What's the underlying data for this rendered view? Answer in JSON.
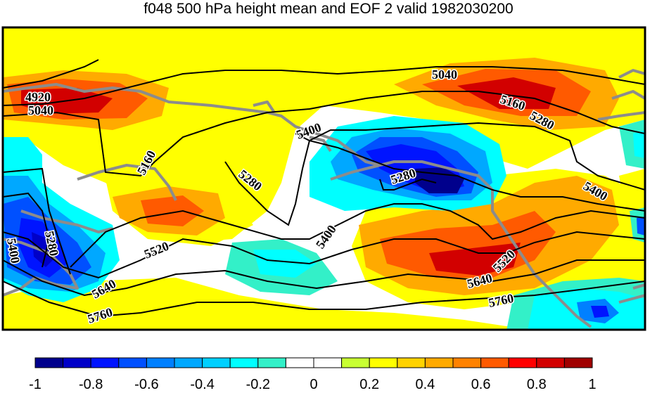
{
  "title": "f048 500 hPa height mean and EOF 2 valid 1982030200",
  "colorbar": {
    "colors": [
      "#00008c",
      "#0000c8",
      "#0014ff",
      "#0050ff",
      "#0080ff",
      "#00a8ff",
      "#00d0ff",
      "#00ffff",
      "#33f0c8",
      "#ffffff",
      "#ffffff",
      "#c8ff32",
      "#ffff00",
      "#ffd200",
      "#ffaa00",
      "#ff8200",
      "#ff5a00",
      "#ff0000",
      "#d20000",
      "#a00000"
    ],
    "labels": [
      {
        "text": "-1",
        "value": -1.0
      },
      {
        "text": "-0.8",
        "value": -0.8
      },
      {
        "text": "-0.6",
        "value": -0.6
      },
      {
        "text": "-0.4",
        "value": -0.4
      },
      {
        "text": "-0.2",
        "value": -0.2
      },
      {
        "text": "0",
        "value": 0.0
      },
      {
        "text": "0.2",
        "value": 0.2
      },
      {
        "text": "0.4",
        "value": 0.4
      },
      {
        "text": "0.6",
        "value": 0.6
      },
      {
        "text": "0.8",
        "value": 0.8
      },
      {
        "text": "1",
        "value": 1.0
      }
    ]
  },
  "contour_labels": [
    "4920",
    "5040",
    "5040",
    "5160",
    "5160",
    "5280",
    "5280",
    "5280",
    "5280",
    "5400",
    "5400",
    "5400",
    "5400",
    "5520",
    "5520",
    "5640",
    "5640",
    "5760",
    "5760"
  ],
  "colors": {
    "coastline": "#8c8c8c",
    "contour": "#000000",
    "frame": "#000000"
  }
}
